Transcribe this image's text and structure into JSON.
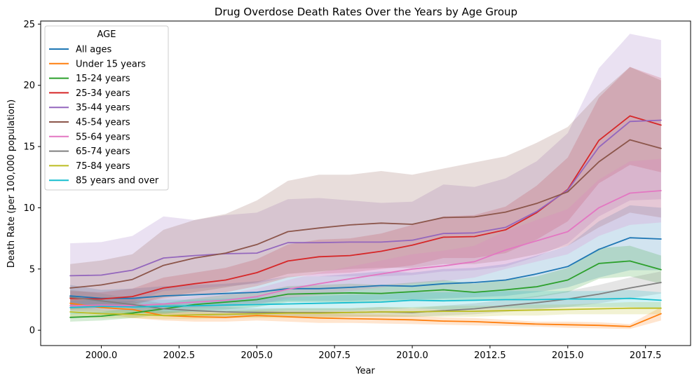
{
  "chart_data": {
    "type": "line",
    "title": "Drug Overdose Death Rates Over the Years by Age Group",
    "xlabel": "Year",
    "ylabel": "Death Rate (per 100,000 population)",
    "xlim": [
      1998.05,
      2018.95
    ],
    "ylim": [
      -1.25,
      25.25
    ],
    "x_ticks": [
      2000.0,
      2002.5,
      2005.0,
      2007.5,
      2010.0,
      2012.5,
      2015.0,
      2017.5
    ],
    "x_tick_labels": [
      "2000.0",
      "2002.5",
      "2005.0",
      "2007.5",
      "2010.0",
      "2012.5",
      "2015.0",
      "2017.5"
    ],
    "y_ticks": [
      0,
      5,
      10,
      15,
      20,
      25
    ],
    "y_tick_labels": [
      "0",
      "5",
      "10",
      "15",
      "20",
      "25"
    ],
    "grid": false,
    "legend": {
      "title": "AGE",
      "placement": "top-left"
    },
    "x": [
      1999,
      2000,
      2001,
      2002,
      2003,
      2004,
      2005,
      2006,
      2007,
      2008,
      2009,
      2010,
      2011,
      2012,
      2013,
      2014,
      2015,
      2016,
      2017,
      2018
    ],
    "series": [
      {
        "name": "All ages",
        "color": "#1f77b4",
        "values": [
          2.8,
          2.6,
          2.6,
          2.8,
          2.9,
          3.0,
          3.1,
          3.4,
          3.4,
          3.5,
          3.65,
          3.6,
          3.8,
          3.9,
          4.1,
          4.6,
          5.2,
          6.6,
          7.55,
          7.45
        ],
        "lower": [
          1.9,
          1.9,
          1.9,
          2.0,
          2.1,
          2.1,
          2.2,
          2.4,
          2.4,
          2.4,
          2.5,
          2.5,
          2.6,
          2.7,
          2.8,
          3.1,
          3.5,
          4.3,
          4.9,
          4.9
        ],
        "upper": [
          3.7,
          3.3,
          3.4,
          3.6,
          3.7,
          3.8,
          4.0,
          4.4,
          4.4,
          4.6,
          4.8,
          4.7,
          5.0,
          5.1,
          5.4,
          6.1,
          6.9,
          8.9,
          10.2,
          10.0
        ]
      },
      {
        "name": "Under 15 years",
        "color": "#ff7f0e",
        "values": [
          2.2,
          1.85,
          1.7,
          1.2,
          1.1,
          1.05,
          1.2,
          1.1,
          1.0,
          0.95,
          0.9,
          0.85,
          0.75,
          0.7,
          0.6,
          0.5,
          0.45,
          0.4,
          0.3,
          1.35
        ],
        "lower": [
          1.6,
          1.4,
          1.0,
          0.8,
          0.7,
          0.7,
          0.8,
          0.7,
          0.6,
          0.6,
          0.55,
          0.5,
          0.45,
          0.4,
          0.35,
          0.3,
          0.2,
          0.15,
          0.1,
          0.8
        ],
        "upper": [
          2.8,
          2.4,
          2.4,
          1.6,
          1.5,
          1.4,
          1.6,
          1.5,
          1.4,
          1.3,
          1.25,
          1.2,
          1.05,
          1.0,
          0.85,
          0.7,
          0.7,
          0.65,
          0.5,
          1.9
        ]
      },
      {
        "name": "15-24 years",
        "color": "#2ca02c",
        "values": [
          1.05,
          1.15,
          1.4,
          1.75,
          2.1,
          2.3,
          2.5,
          2.95,
          3.0,
          3.05,
          3.0,
          3.15,
          3.3,
          3.1,
          3.3,
          3.55,
          4.1,
          5.45,
          5.65,
          4.95
        ],
        "lower": [
          0.7,
          0.8,
          1.0,
          1.3,
          1.6,
          1.7,
          1.9,
          2.3,
          2.3,
          2.3,
          2.3,
          2.4,
          2.5,
          2.4,
          2.5,
          2.7,
          3.1,
          4.2,
          4.4,
          3.8
        ],
        "upper": [
          1.4,
          1.5,
          1.8,
          2.2,
          2.6,
          2.9,
          3.1,
          3.6,
          3.7,
          3.8,
          3.7,
          3.9,
          4.1,
          3.8,
          4.1,
          4.4,
          5.1,
          6.7,
          6.9,
          6.1
        ]
      },
      {
        "name": "25-34 years",
        "color": "#d62728",
        "values": [
          2.6,
          2.55,
          2.75,
          3.45,
          3.8,
          4.1,
          4.7,
          5.65,
          6.0,
          6.1,
          6.45,
          6.95,
          7.6,
          7.65,
          8.2,
          9.6,
          11.5,
          15.5,
          17.5,
          16.75
        ],
        "lower": [
          2.0,
          2.0,
          2.1,
          2.6,
          2.9,
          3.1,
          3.6,
          4.3,
          4.6,
          4.7,
          5.0,
          5.3,
          5.9,
          5.9,
          6.3,
          7.4,
          8.9,
          12.0,
          13.5,
          12.9
        ],
        "upper": [
          3.2,
          3.1,
          3.4,
          4.3,
          4.7,
          5.1,
          5.8,
          7.0,
          7.4,
          7.5,
          7.9,
          8.6,
          9.3,
          9.4,
          10.1,
          11.8,
          14.1,
          19.0,
          21.5,
          20.6
        ]
      },
      {
        "name": "35-44 years",
        "color": "#9467bd",
        "values": [
          4.45,
          4.5,
          4.9,
          5.9,
          6.1,
          6.25,
          6.3,
          7.15,
          7.15,
          7.2,
          7.2,
          7.35,
          7.9,
          7.95,
          8.4,
          9.7,
          11.45,
          14.95,
          17.05,
          17.15
        ],
        "lower": [
          1.8,
          1.8,
          2.3,
          3.2,
          3.4,
          3.6,
          3.8,
          4.4,
          4.4,
          4.4,
          4.4,
          4.5,
          4.8,
          4.9,
          5.2,
          6.0,
          7.1,
          9.3,
          10.6,
          10.7
        ],
        "upper": [
          7.1,
          7.2,
          7.7,
          9.3,
          9.0,
          9.4,
          9.6,
          10.7,
          10.8,
          10.6,
          10.4,
          10.5,
          11.9,
          11.7,
          12.4,
          13.8,
          16.1,
          21.4,
          24.2,
          23.7
        ]
      },
      {
        "name": "45-54 years",
        "color": "#8c564b",
        "values": [
          3.45,
          3.7,
          4.15,
          5.3,
          5.9,
          6.3,
          7.0,
          8.05,
          8.35,
          8.6,
          8.75,
          8.65,
          9.2,
          9.25,
          9.65,
          10.35,
          11.3,
          13.75,
          15.55,
          14.85
        ],
        "lower": [
          1.7,
          1.8,
          2.1,
          2.7,
          3.1,
          3.5,
          3.9,
          4.6,
          4.8,
          5.0,
          5.1,
          5.1,
          5.4,
          5.4,
          5.7,
          6.2,
          6.9,
          8.4,
          9.6,
          9.2
        ],
        "upper": [
          5.4,
          5.7,
          6.2,
          8.2,
          9.0,
          9.5,
          10.6,
          12.2,
          12.7,
          12.7,
          13.0,
          12.7,
          13.2,
          13.7,
          14.2,
          15.3,
          16.6,
          19.3,
          21.5,
          20.4
        ]
      },
      {
        "name": "55-64 years",
        "color": "#e377c2",
        "values": [
          2.0,
          2.05,
          2.0,
          2.15,
          2.3,
          2.45,
          2.75,
          3.35,
          3.8,
          4.2,
          4.6,
          5.0,
          5.25,
          5.6,
          6.55,
          7.3,
          8.05,
          10.0,
          11.2,
          11.4
        ],
        "lower": [
          1.6,
          1.6,
          1.6,
          1.7,
          1.8,
          1.9,
          2.1,
          2.6,
          2.9,
          3.2,
          3.5,
          3.8,
          4.0,
          4.3,
          5.0,
          5.6,
          6.2,
          7.7,
          8.6,
          8.8
        ],
        "upper": [
          2.4,
          2.5,
          2.4,
          2.6,
          2.8,
          3.0,
          3.4,
          4.1,
          4.7,
          5.2,
          5.7,
          6.2,
          6.5,
          6.9,
          8.1,
          9.0,
          9.9,
          12.3,
          13.8,
          14.0
        ]
      },
      {
        "name": "65-74 years",
        "color": "#7f7f7f",
        "values": [
          2.7,
          2.4,
          2.1,
          1.75,
          1.6,
          1.5,
          1.45,
          1.45,
          1.45,
          1.45,
          1.5,
          1.45,
          1.6,
          1.75,
          2.0,
          2.25,
          2.55,
          2.95,
          3.45,
          3.9
        ],
        "lower": [
          2.1,
          1.8,
          1.6,
          1.3,
          1.2,
          1.1,
          1.1,
          1.1,
          1.1,
          1.1,
          1.1,
          1.1,
          1.2,
          1.3,
          1.5,
          1.7,
          1.9,
          2.2,
          2.6,
          3.0
        ],
        "upper": [
          3.3,
          3.0,
          2.6,
          2.2,
          2.0,
          1.9,
          1.8,
          1.8,
          1.8,
          1.8,
          1.9,
          1.8,
          2.0,
          2.2,
          2.5,
          2.8,
          3.2,
          3.7,
          4.3,
          4.8
        ]
      },
      {
        "name": "75-84 years",
        "color": "#bcbd22",
        "values": [
          1.5,
          1.35,
          1.3,
          1.2,
          1.25,
          1.3,
          1.35,
          1.4,
          1.4,
          1.45,
          1.5,
          1.5,
          1.55,
          1.55,
          1.6,
          1.65,
          1.7,
          1.75,
          1.8,
          1.8
        ],
        "lower": [
          1.1,
          1.0,
          1.0,
          0.9,
          0.9,
          1.0,
          1.0,
          1.0,
          1.0,
          1.1,
          1.1,
          1.1,
          1.1,
          1.1,
          1.2,
          1.2,
          1.3,
          1.3,
          1.3,
          1.3
        ],
        "upper": [
          1.9,
          1.7,
          1.6,
          1.5,
          1.6,
          1.6,
          1.7,
          1.8,
          1.8,
          1.8,
          1.9,
          1.9,
          2.0,
          2.0,
          2.0,
          2.1,
          2.1,
          2.2,
          2.3,
          2.3
        ]
      },
      {
        "name": "85 years and over",
        "color": "#17becf",
        "values": [
          1.85,
          1.95,
          1.9,
          1.95,
          2.0,
          2.05,
          2.1,
          2.15,
          2.2,
          2.25,
          2.3,
          2.45,
          2.4,
          2.45,
          2.5,
          2.5,
          2.55,
          2.55,
          2.6,
          2.45
        ],
        "lower": [
          1.3,
          1.4,
          1.4,
          1.4,
          1.5,
          1.5,
          1.5,
          1.6,
          1.6,
          1.6,
          1.7,
          1.8,
          1.7,
          1.8,
          1.8,
          1.8,
          1.9,
          1.9,
          1.9,
          1.8
        ],
        "upper": [
          2.4,
          2.5,
          2.4,
          2.5,
          2.5,
          2.6,
          2.7,
          2.7,
          2.8,
          2.9,
          2.9,
          3.1,
          3.1,
          3.1,
          3.2,
          3.2,
          3.2,
          3.2,
          3.3,
          3.1
        ]
      }
    ]
  }
}
